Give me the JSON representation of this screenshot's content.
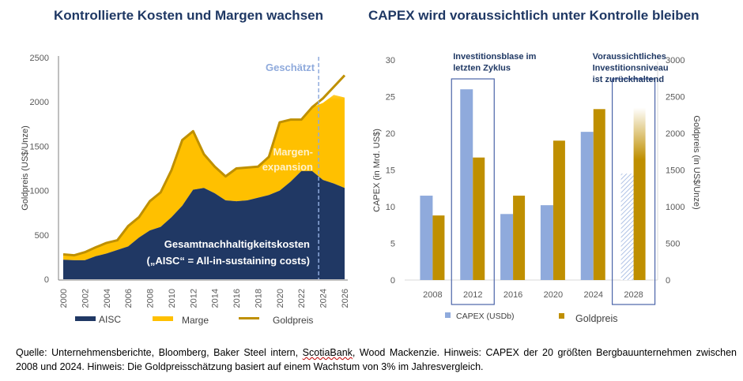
{
  "titles": {
    "left": "Kontrollierte Kosten und Margen wachsen",
    "right": "CAPEX wird voraussichtlich unter Kontrolle bleiben"
  },
  "colors": {
    "aisc": "#203864",
    "margin": "#ffc000",
    "goldprice_line": "#bf9000",
    "capex_bar": "#8faadc",
    "gold_bar": "#bf8f00",
    "title": "#1f3864",
    "estimate_line": "#8faadc"
  },
  "chart_data": [
    {
      "type": "area",
      "title": "Kontrollierte Kosten und Margen wachsen",
      "xlabel": "",
      "ylabel": "Goldpreis (US$/Unze)",
      "ylim": [
        0,
        2500
      ],
      "yticks": [
        "0",
        "500",
        "1000",
        "1500",
        "2000",
        "2500"
      ],
      "xticks": [
        "2000",
        "2002",
        "2004",
        "2006",
        "2008",
        "2010",
        "2012",
        "2014",
        "2016",
        "2018",
        "2020",
        "2022",
        "2024",
        "2026"
      ],
      "x": [
        2000,
        2001,
        2002,
        2003,
        2004,
        2005,
        2006,
        2007,
        2008,
        2009,
        2010,
        2011,
        2012,
        2013,
        2014,
        2015,
        2016,
        2017,
        2018,
        2019,
        2020,
        2021,
        2022,
        2023,
        2024,
        2025,
        2026
      ],
      "series": [
        {
          "name": "AISC",
          "kind": "area",
          "values": [
            220,
            215,
            215,
            260,
            290,
            330,
            370,
            470,
            550,
            590,
            700,
            830,
            1010,
            1030,
            970,
            890,
            880,
            890,
            920,
            950,
            1000,
            1100,
            1220,
            1220,
            1120,
            1080,
            1030
          ]
        },
        {
          "name": "Marge",
          "kind": "area",
          "values": [
            60,
            55,
            90,
            100,
            120,
            110,
            230,
            230,
            330,
            390,
            530,
            740,
            660,
            380,
            300,
            270,
            370,
            370,
            350,
            430,
            770,
            700,
            590,
            720,
            870,
            1000,
            1020
          ]
        },
        {
          "name": "Goldpreis",
          "kind": "line",
          "values": [
            280,
            270,
            305,
            360,
            410,
            440,
            600,
            700,
            880,
            980,
            1230,
            1570,
            1670,
            1410,
            1270,
            1160,
            1250,
            1260,
            1270,
            1380,
            1770,
            1800,
            1800,
            1940,
            2040,
            2170,
            2300
          ]
        }
      ],
      "estimate_start": 2023.6,
      "annotations": {
        "estimate": "Geschätzt",
        "margin": [
          "Margen-",
          "expansion"
        ],
        "aisc": [
          "Gesamtnachhaltigkeitskosten",
          "(„AISC“ = All-in-sustaining costs)"
        ]
      },
      "legend": [
        "AISC",
        "Marge",
        "Goldpreis"
      ],
      "legend_position": "bottom",
      "grid": false
    },
    {
      "type": "bar",
      "title": "CAPEX wird voraussichtlich unter Kontrolle bleiben",
      "categories": [
        "2008",
        "2012",
        "2016",
        "2020",
        "2024",
        "2028"
      ],
      "ylabel": "CAPEX (in Mrd. US$)",
      "y2label": "Goldpreis (in US$/Unze)",
      "ylim": [
        0,
        30
      ],
      "y2lim": [
        0,
        3000
      ],
      "yticks": [
        "0",
        "5",
        "10",
        "15",
        "20",
        "25",
        "30"
      ],
      "y2ticks": [
        "0",
        "500",
        "1000",
        "1500",
        "2000",
        "2500",
        "3000"
      ],
      "series": [
        {
          "name": "CAPEX (USDb)",
          "axis": "left",
          "values": [
            11.5,
            26,
            9,
            10.2,
            20.2,
            14.5
          ]
        },
        {
          "name": "Goldpreis",
          "axis": "right",
          "values": [
            880,
            1670,
            1150,
            1900,
            2330,
            2350
          ]
        }
      ],
      "projected_category": "2028",
      "highlight_boxes": [
        {
          "category": "2012",
          "label": [
            "Investitionsblase im",
            "letzten Zyklus"
          ]
        },
        {
          "category": "2028",
          "label": [
            "Voraussichtliches",
            "Investitionsniveau",
            "ist zurückhaltend"
          ]
        }
      ],
      "legend": [
        "CAPEX (USDb)",
        "Goldpreis"
      ],
      "legend_position": "bottom",
      "grid": false
    }
  ],
  "footnote": {
    "part1": "Quelle: Unternehmensberichte, Bloomberg, Baker Steel intern, ",
    "underlined": "ScotiaBank",
    "part2": ", Wood Mackenzie. Hinweis: CAPEX der 20 größten Bergbauunternehmen zwischen 2008 und 2024. Hinweis: Die Goldpreisschätzung basiert auf einem Wachstum von 3% im Jahresvergleich."
  }
}
